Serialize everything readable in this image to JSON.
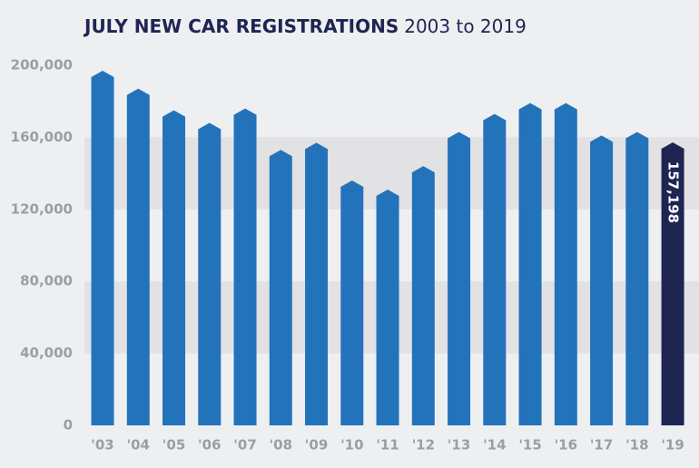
{
  "chart_data": {
    "type": "bar",
    "title": "JULY NEW CAR REGISTRATIONS",
    "subtitle": "2003 to 2019",
    "categories": [
      "'03",
      "'04",
      "'05",
      "'06",
      "'07",
      "'08",
      "'09",
      "'10",
      "'11",
      "'12",
      "'13",
      "'14",
      "'15",
      "'16",
      "'17",
      "'18",
      "'19"
    ],
    "values": [
      197000,
      187000,
      175000,
      168000,
      176000,
      153000,
      157000,
      136000,
      131000,
      144000,
      163000,
      173000,
      179000,
      179000,
      161000,
      163000,
      157198
    ],
    "value_labels": [
      null,
      null,
      null,
      null,
      null,
      null,
      null,
      null,
      null,
      null,
      null,
      null,
      null,
      null,
      null,
      null,
      "157,198"
    ],
    "colors": [
      "#2373bb",
      "#2373bb",
      "#2373bb",
      "#2373bb",
      "#2373bb",
      "#2373bb",
      "#2373bb",
      "#2373bb",
      "#2373bb",
      "#2373bb",
      "#2373bb",
      "#2373bb",
      "#2373bb",
      "#2373bb",
      "#2373bb",
      "#2373bb",
      "#1f2553"
    ],
    "ylim": [
      0,
      200000
    ],
    "yticks": [
      0,
      {
        "value": 40000,
        "label": "40,000"
      },
      {
        "value": 80000,
        "label": "80,000"
      },
      {
        "value": 120000,
        "label": "120,000"
      },
      {
        "value": 160000,
        "label": "160,000"
      },
      {
        "value": 200000,
        "label": "200,000"
      }
    ],
    "banded_grid": true
  }
}
